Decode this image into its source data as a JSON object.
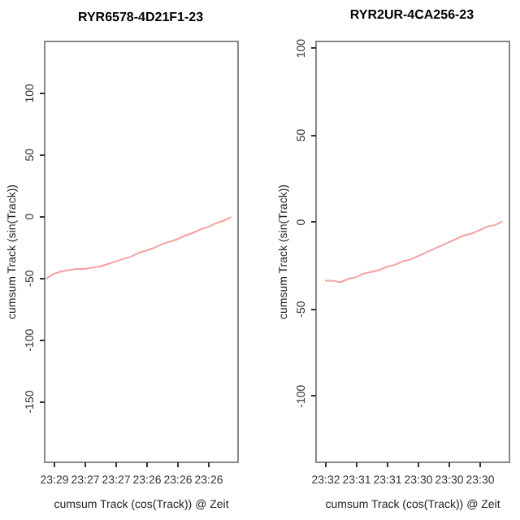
{
  "chart_data": [
    {
      "type": "line",
      "title": "RYR6578-4D21F1-23",
      "xlabel": "cumsum Track (cos(Track)) @ Zeit",
      "ylabel": "cumsum Track (sin(Track))",
      "categories": [
        null,
        "23:29",
        null,
        null,
        null,
        "23:27",
        null,
        null,
        null,
        "23:27",
        null,
        null,
        null,
        "23:26",
        null,
        null,
        null,
        "23:26",
        null,
        null,
        null,
        "23:26",
        null,
        null,
        null
      ],
      "ylim": [
        -199,
        142
      ],
      "yticks": [
        -150,
        -100,
        -50,
        0,
        50,
        100
      ],
      "series": [
        {
          "color": "#f4a0a0",
          "values": [
            -51,
            -47,
            -45,
            -44,
            -43,
            -43,
            -42,
            -41,
            -39,
            -37,
            -35,
            -33,
            -30,
            -28,
            -26,
            -23,
            -21,
            -19,
            -16,
            -14,
            -11,
            -9,
            -6,
            -4,
            -1
          ]
        }
      ]
    },
    {
      "type": "line",
      "title": "RYR2UR-4CA256-23",
      "xlabel": "cumsum Track (cos(Track)) @ Zeit",
      "ylabel": "cumsum Track (sin(Track))",
      "categories": [
        null,
        "23:32",
        null,
        null,
        null,
        "23:31",
        null,
        null,
        null,
        "23:31",
        null,
        null,
        null,
        "23:30",
        null,
        null,
        null,
        "23:30",
        null,
        null,
        null,
        "23:30",
        null,
        null,
        null
      ],
      "ylim": [
        -138,
        104
      ],
      "yticks": [
        -100,
        -50,
        0,
        50,
        100
      ],
      "series": [
        {
          "color": "#f4a0a0",
          "values": [
            null,
            -34,
            -34,
            -35,
            -33,
            -32,
            -30,
            -29,
            -28,
            -26,
            -25,
            -23,
            -22,
            -20,
            -18,
            -16,
            -14,
            -12,
            -10,
            -8,
            -7,
            -5,
            -3,
            -2,
            0
          ]
        }
      ]
    }
  ]
}
